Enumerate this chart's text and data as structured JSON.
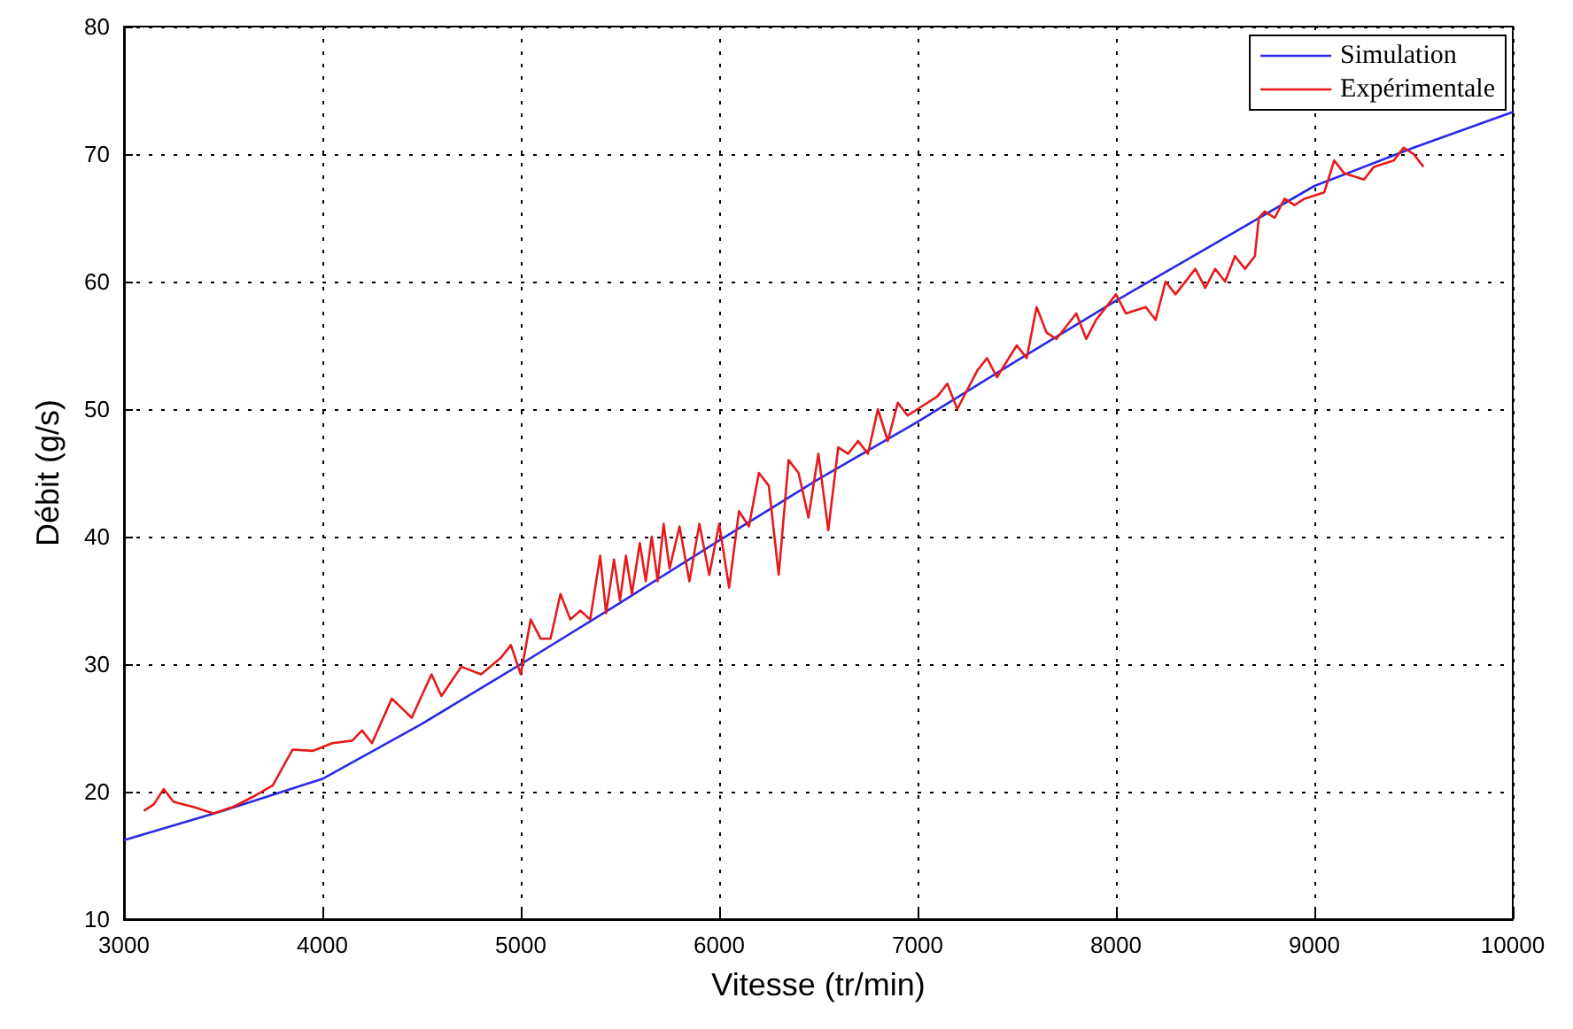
{
  "chart_data": {
    "type": "line",
    "xlabel": "Vitesse (tr/min)",
    "ylabel": "Débit (g/s)",
    "xlim": [
      3000,
      10000
    ],
    "xticks": [
      3000,
      4000,
      5000,
      6000,
      7000,
      8000,
      9000,
      10000
    ],
    "ylim": [
      10,
      80
    ],
    "yticks": [
      10,
      20,
      30,
      40,
      50,
      60,
      70,
      80
    ],
    "grid": true,
    "legend": "top right",
    "marker": "none",
    "line_style": "solid",
    "series": [
      {
        "name": "Simulation",
        "color": "#2a2ae6",
        "x": [
          3000,
          3500,
          4000,
          4500,
          5000,
          5500,
          6000,
          6500,
          7000,
          7500,
          8000,
          8500,
          9000,
          9500,
          10000
        ],
        "values": [
          16.2,
          18.5,
          21,
          25.3,
          30,
          34.8,
          39.7,
          44.5,
          49,
          53.8,
          58.5,
          63,
          67.5,
          70.5,
          73.3
        ]
      },
      {
        "name": "Expérimentale",
        "color": "#e61a1a",
        "x": [
          3100,
          3150,
          3200,
          3250,
          3350,
          3450,
          3550,
          3650,
          3750,
          3850,
          3950,
          4050,
          4150,
          4200,
          4250,
          4350,
          4450,
          4550,
          4600,
          4700,
          4800,
          4900,
          4950,
          5000,
          5050,
          5100,
          5150,
          5200,
          5250,
          5300,
          5350,
          5400,
          5430,
          5470,
          5500,
          5530,
          5560,
          5600,
          5630,
          5660,
          5690,
          5720,
          5750,
          5800,
          5850,
          5900,
          5950,
          6000,
          6050,
          6100,
          6150,
          6200,
          6250,
          6300,
          6350,
          6400,
          6450,
          6500,
          6550,
          6600,
          6650,
          6700,
          6750,
          6800,
          6850,
          6900,
          6950,
          7000,
          7100,
          7150,
          7200,
          7300,
          7350,
          7400,
          7500,
          7550,
          7600,
          7650,
          7700,
          7800,
          7850,
          7900,
          8000,
          8050,
          8150,
          8200,
          8250,
          8300,
          8400,
          8450,
          8500,
          8550,
          8600,
          8650,
          8700,
          8720,
          8750,
          8800,
          8850,
          8900,
          8950,
          9050,
          9100,
          9150,
          9250,
          9300,
          9400,
          9450,
          9500,
          9550
        ],
        "values": [
          18.5,
          19,
          20.2,
          19.2,
          18.8,
          18.3,
          18.8,
          19.6,
          20.5,
          23.3,
          23.2,
          23.8,
          24,
          24.8,
          23.8,
          27.3,
          25.8,
          29.2,
          27.5,
          29.8,
          29.2,
          30.5,
          31.5,
          29.2,
          33.5,
          32,
          32,
          35.5,
          33.5,
          34.2,
          33.5,
          38.5,
          34,
          38.2,
          35,
          38.5,
          35.5,
          39.5,
          36.5,
          40,
          36.5,
          41,
          37.5,
          40.8,
          36.5,
          41,
          37,
          41,
          36,
          42,
          40.8,
          45,
          44,
          37,
          46,
          45,
          41.5,
          46.5,
          40.5,
          47,
          46.5,
          47.5,
          46.5,
          50,
          47.5,
          50.5,
          49.5,
          50,
          51,
          52,
          50,
          53,
          54,
          52.5,
          55,
          54,
          58,
          56,
          55.5,
          57.5,
          55.5,
          57,
          59,
          57.5,
          58,
          57,
          60,
          59,
          61,
          59.5,
          61,
          60,
          62,
          61,
          62,
          65,
          65.5,
          65,
          66.5,
          66,
          66.5,
          67,
          69.5,
          68.5,
          68,
          69,
          69.5,
          70.5,
          70,
          69
        ]
      }
    ]
  }
}
